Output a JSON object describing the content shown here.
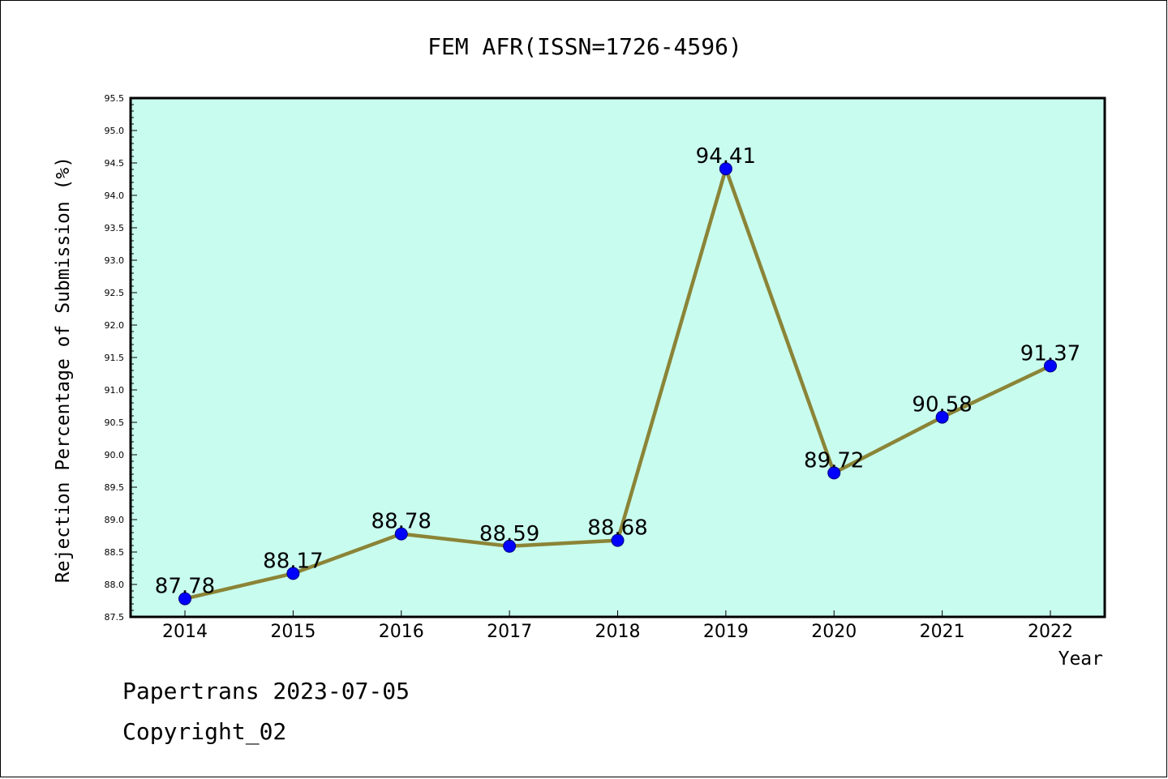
{
  "chart_data": {
    "type": "line",
    "title": "FEM AFR(ISSN=1726-4596)",
    "xlabel": "Year",
    "ylabel": "Rejection Percentage of Submission (%)",
    "categories": [
      "2014",
      "2015",
      "2016",
      "2017",
      "2018",
      "2019",
      "2020",
      "2021",
      "2022"
    ],
    "values": [
      87.78,
      88.17,
      88.78,
      88.59,
      88.68,
      94.41,
      89.72,
      90.58,
      91.37
    ],
    "data_labels": [
      "87.78",
      "88.17",
      "88.78",
      "88.59",
      "88.68",
      "94.41",
      "89.72",
      "90.58",
      "91.37"
    ],
    "ylim": [
      87.5,
      95.5
    ],
    "yticks": [
      "87.5",
      "88.0",
      "88.5",
      "89.0",
      "89.5",
      "90.0",
      "90.5",
      "91.0",
      "91.5",
      "92.0",
      "92.5",
      "93.0",
      "93.5",
      "94.0",
      "94.5",
      "95.0",
      "95.5"
    ],
    "grid": false,
    "legend": "none",
    "colors": {
      "plot_background": "#c8fcee",
      "line": "#8b8437",
      "marker": "#0000ff",
      "marker_edge": "#00007f"
    }
  },
  "footer": {
    "line1": "Papertrans 2023-07-05",
    "line2": "Copyright_02"
  }
}
